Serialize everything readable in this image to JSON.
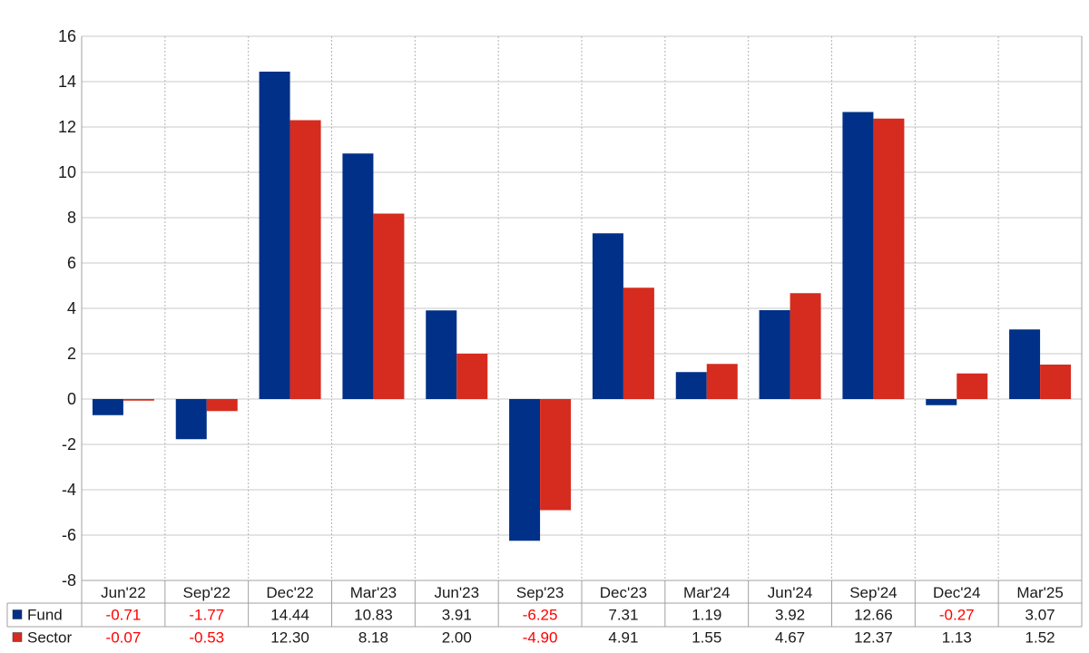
{
  "chart_data": {
    "type": "bar",
    "categories": [
      "Jun'22",
      "Sep'22",
      "Dec'22",
      "Mar'23",
      "Jun'23",
      "Sep'23",
      "Dec'23",
      "Mar'24",
      "Jun'24",
      "Sep'24",
      "Dec'24",
      "Mar'25"
    ],
    "series": [
      {
        "name": "Fund",
        "color": "#003087",
        "values": [
          -0.71,
          -1.77,
          14.44,
          10.83,
          3.91,
          -6.25,
          7.31,
          1.19,
          3.92,
          12.66,
          -0.27,
          3.07
        ],
        "labels": [
          "-0.71",
          "-1.77",
          "14.44",
          "10.83",
          "3.91",
          "-6.25",
          "7.31",
          "1.19",
          "3.92",
          "12.66",
          "-0.27",
          "3.07"
        ]
      },
      {
        "name": "Sector",
        "color": "#d62b1f",
        "values": [
          -0.07,
          -0.53,
          12.3,
          8.18,
          2.0,
          -4.9,
          4.91,
          1.55,
          4.67,
          12.37,
          1.13,
          1.52
        ],
        "labels": [
          "-0.07",
          "-0.53",
          "12.30",
          "8.18",
          "2.00",
          "-4.90",
          "4.91",
          "1.55",
          "4.67",
          "12.37",
          "1.13",
          "1.52"
        ]
      }
    ],
    "ylim": [
      -8,
      16
    ],
    "yticks": [
      -8,
      -6,
      -4,
      -2,
      0,
      2,
      4,
      6,
      8,
      10,
      12,
      14,
      16
    ],
    "title": "",
    "xlabel": "",
    "ylabel": "",
    "grid": true,
    "legend": "data table left",
    "negative_value_color": "#ff0000"
  }
}
